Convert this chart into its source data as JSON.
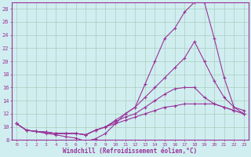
{
  "xlabel": "Windchill (Refroidissement éolien,°C)",
  "xlim": [
    -0.5,
    23.5
  ],
  "ylim": [
    8,
    29
  ],
  "xticks": [
    0,
    1,
    2,
    3,
    4,
    5,
    6,
    7,
    8,
    9,
    10,
    11,
    12,
    13,
    14,
    15,
    16,
    17,
    18,
    19,
    20,
    21,
    22,
    23
  ],
  "yticks": [
    8,
    10,
    12,
    14,
    16,
    18,
    20,
    22,
    24,
    26,
    28
  ],
  "bg_color": "#d0eef0",
  "line_color": "#993399",
  "grid_color": "#aaccbb",
  "curve1_x": [
    0,
    1,
    2,
    3,
    4,
    5,
    6,
    7,
    8,
    9,
    10,
    11,
    12,
    13,
    14,
    15,
    16,
    17,
    18,
    19,
    20,
    21,
    22,
    23
  ],
  "curve1_y": [
    10.5,
    9.5,
    9.3,
    9.0,
    8.8,
    8.5,
    8.3,
    7.8,
    8.2,
    9.0,
    10.5,
    12.0,
    13.0,
    16.5,
    20.0,
    23.5,
    25.0,
    27.5,
    29.0,
    29.0,
    23.5,
    17.5,
    13.0,
    12.0
  ],
  "curve2_x": [
    0,
    1,
    2,
    3,
    4,
    5,
    6,
    7,
    8,
    9,
    10,
    11,
    12,
    13,
    14,
    15,
    16,
    17,
    18,
    19,
    20,
    21,
    22,
    23
  ],
  "curve2_y": [
    10.5,
    9.5,
    9.3,
    9.2,
    9.0,
    9.0,
    9.0,
    8.8,
    9.5,
    10.0,
    11.0,
    12.0,
    13.0,
    14.5,
    16.0,
    17.5,
    19.0,
    20.5,
    23.0,
    20.0,
    17.0,
    14.5,
    13.0,
    12.5
  ],
  "curve3_x": [
    0,
    1,
    2,
    3,
    4,
    5,
    6,
    7,
    8,
    9,
    10,
    11,
    12,
    13,
    14,
    15,
    16,
    17,
    18,
    19,
    20,
    21,
    22,
    23
  ],
  "curve3_y": [
    10.5,
    9.5,
    9.3,
    9.2,
    9.0,
    9.0,
    9.0,
    8.8,
    9.5,
    10.0,
    10.8,
    11.5,
    12.0,
    13.0,
    14.0,
    15.0,
    15.8,
    16.0,
    16.0,
    14.5,
    13.5,
    13.0,
    12.5,
    12.0
  ],
  "curve4_x": [
    0,
    1,
    2,
    3,
    4,
    5,
    6,
    7,
    8,
    9,
    10,
    11,
    12,
    13,
    14,
    15,
    16,
    17,
    18,
    19,
    20,
    21,
    22,
    23
  ],
  "curve4_y": [
    10.5,
    9.5,
    9.3,
    9.2,
    9.0,
    9.0,
    9.0,
    8.8,
    9.5,
    10.0,
    10.5,
    11.0,
    11.5,
    12.0,
    12.5,
    13.0,
    13.2,
    13.5,
    13.5,
    13.5,
    13.5,
    13.0,
    12.5,
    12.0
  ]
}
